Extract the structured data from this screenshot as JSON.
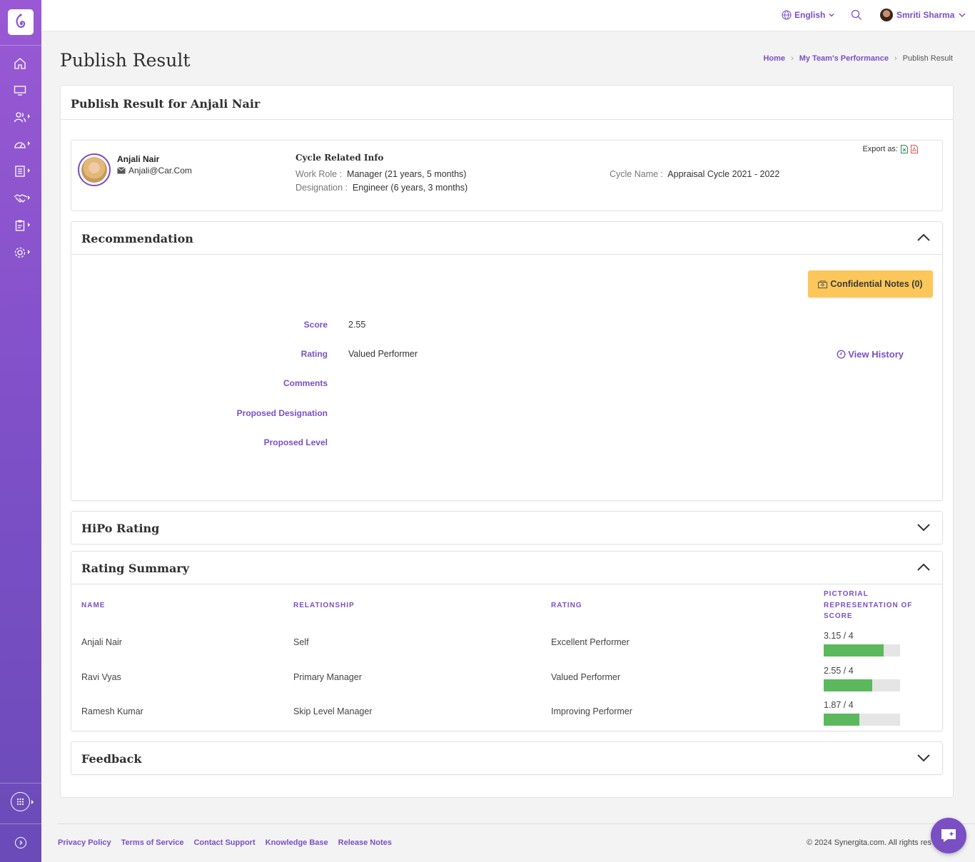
{
  "topbar": {
    "language": "English",
    "user_name": "Smriti Sharma"
  },
  "page": {
    "title": "Publish Result"
  },
  "breadcrumb": {
    "home": "Home",
    "team": "My Team's Performance",
    "current": "Publish Result"
  },
  "card": {
    "title": "Publish Result for Anjali Nair"
  },
  "employee": {
    "name": "Anjali Nair",
    "email": "Anjali@Car.Com"
  },
  "cycle": {
    "title": "Cycle Related Info",
    "work_role_label": "Work Role :",
    "work_role_value": "Manager (21 years, 5 months)",
    "designation_label": "Designation :",
    "designation_value": "Engineer (6 years, 3 months)",
    "cycle_name_label": "Cycle Name :",
    "cycle_name_value": "Appraisal Cycle 2021 - 2022"
  },
  "export": {
    "label": "Export as:"
  },
  "recommendation": {
    "title": "Recommendation",
    "confidential_notes": "Confidential Notes (0)",
    "score_label": "Score",
    "score_value": "2.55",
    "rating_label": "Rating",
    "rating_value": "Valued Performer",
    "comments_label": "Comments",
    "proposed_designation_label": "Proposed Designation",
    "proposed_level_label": "Proposed Level",
    "view_history": "View History"
  },
  "hipo": {
    "title": "HiPo Rating"
  },
  "rating_summary": {
    "title": "Rating Summary",
    "columns": [
      "NAME",
      "RELATIONSHIP",
      "RATING",
      "PICTORIAL REPRESENTATION OF SCORE"
    ],
    "rows": [
      {
        "name": "Anjali Nair",
        "relationship": "Self",
        "rating": "Excellent Performer",
        "score_text": "3.15 / 4",
        "score": 3.15,
        "max": 4
      },
      {
        "name": "Ravi Vyas",
        "relationship": "Primary Manager",
        "rating": "Valued Performer",
        "score_text": "2.55 / 4",
        "score": 2.55,
        "max": 4
      },
      {
        "name": "Ramesh Kumar",
        "relationship": "Skip Level Manager",
        "rating": "Improving Performer",
        "score_text": "1.87 / 4",
        "score": 1.87,
        "max": 4
      }
    ]
  },
  "feedback": {
    "title": "Feedback"
  },
  "footer": {
    "links": [
      "Privacy Policy",
      "Terms of Service",
      "Contact Support",
      "Knowledge Base",
      "Release Notes"
    ],
    "copyright": "© 2024 Synergita.com. All rights res"
  },
  "colors": {
    "accent": "#7a4fc4",
    "bar_fill": "#5cb85c",
    "notes_button": "#fbc75a"
  }
}
